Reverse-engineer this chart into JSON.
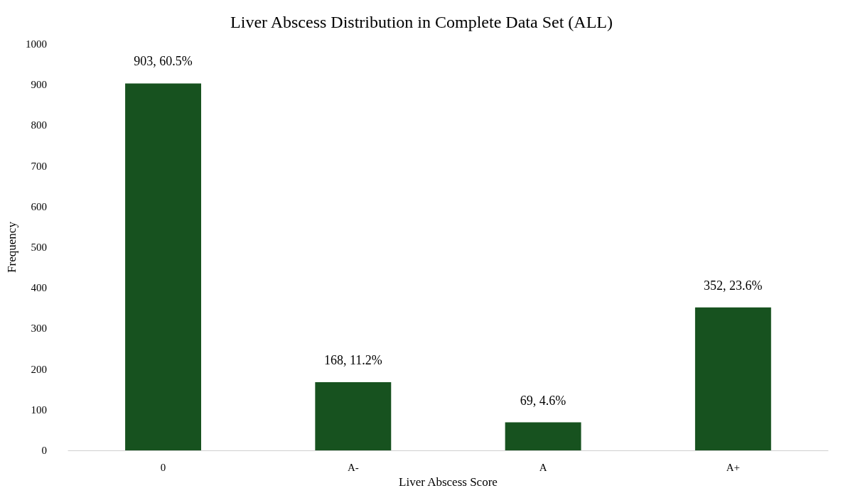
{
  "chart_data": {
    "type": "bar",
    "title": "Liver Abscess Distribution in Complete Data Set (ALL)",
    "xlabel": "Liver Abscess Score",
    "ylabel": "Frequency",
    "categories": [
      "0",
      "A-",
      "A",
      "A+"
    ],
    "values": [
      903,
      168,
      69,
      352
    ],
    "color": "#17521f",
    "value_labels": [
      "903, 60.5%",
      "168, 11.2%",
      "69, 4.6%",
      "352, 23.6%"
    ],
    "ylim": [
      0,
      1000
    ],
    "yticks": [
      0,
      100,
      200,
      300,
      400,
      500,
      600,
      700,
      800,
      900,
      1000
    ],
    "grid": false
  }
}
